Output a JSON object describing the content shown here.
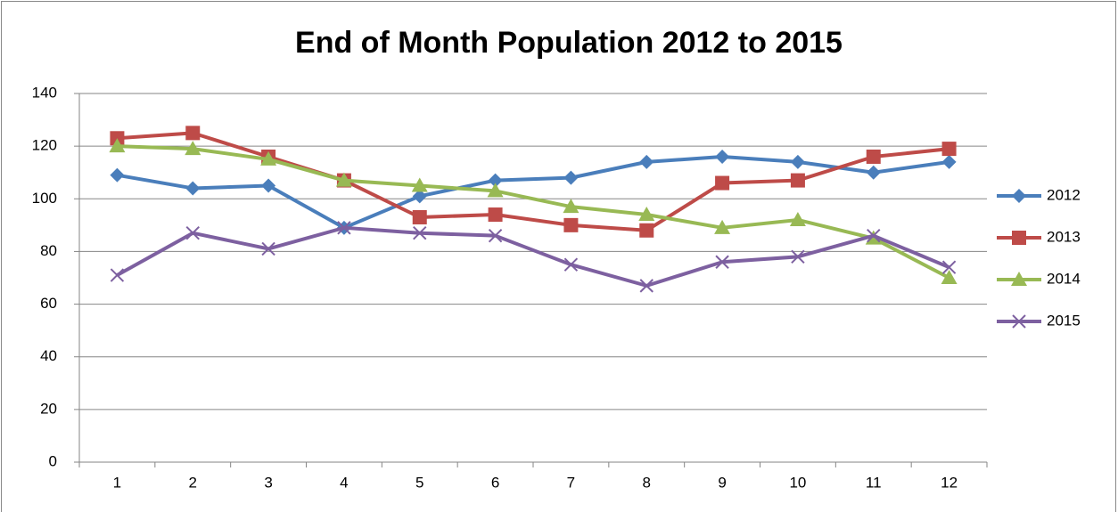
{
  "chart_data": {
    "type": "line",
    "title": "End of Month Population 2012 to 2015",
    "categories": [
      "1",
      "2",
      "3",
      "4",
      "5",
      "6",
      "7",
      "8",
      "9",
      "10",
      "11",
      "12"
    ],
    "series": [
      {
        "name": "2012",
        "color": "#4a7ebb",
        "marker": "diamond",
        "values": [
          109,
          104,
          105,
          89,
          101,
          107,
          108,
          114,
          116,
          114,
          110,
          114
        ]
      },
      {
        "name": "2013",
        "color": "#be4b48",
        "marker": "square",
        "values": [
          123,
          125,
          116,
          107,
          93,
          94,
          90,
          88,
          106,
          107,
          116,
          119
        ]
      },
      {
        "name": "2014",
        "color": "#98b954",
        "marker": "triangle",
        "values": [
          120,
          119,
          115,
          107,
          105,
          103,
          97,
          94,
          89,
          92,
          85,
          70
        ]
      },
      {
        "name": "2015",
        "color": "#7d60a0",
        "marker": "x",
        "values": [
          71,
          87,
          81,
          89,
          87,
          86,
          75,
          67,
          76,
          78,
          86,
          74
        ]
      }
    ],
    "ylim": [
      0,
      140
    ],
    "yticks": [
      0,
      20,
      40,
      60,
      80,
      100,
      120,
      140
    ],
    "grid": true,
    "legend": "right"
  }
}
